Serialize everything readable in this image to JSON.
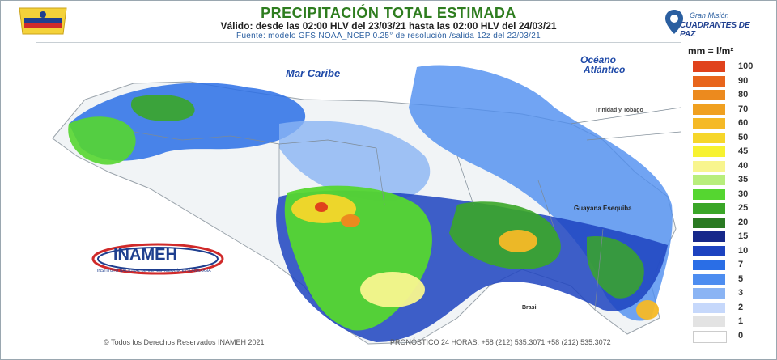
{
  "header": {
    "title": "PRECIPITACIÓN TOTAL ESTIMADA",
    "subtitle": "Válido: desde las 02:00 HLV del 23/03/21 hasta las 02:00 HLV del 24/03/21",
    "source": "Fuente: modelo GFS NOAA_NCEP 0.25° de resolución /salida 12z del 22/03/21",
    "mision_line1": "Gran Misión",
    "mision_line2": "CUADRANTES DE PAZ"
  },
  "map": {
    "sea_label": "Mar Caribe",
    "ocean_label_1": "Océano",
    "ocean_label_2": "Atlántico",
    "country_label": "Trinidad y Tobago",
    "region_label": "Guayana Esequiba",
    "neighbor_label": "Brasil"
  },
  "logo": {
    "name": "INAMEH",
    "tagline": "INSTITUTO NACIONAL DE METEOROLOGÍA E HIDROLOGÍA"
  },
  "legend": {
    "title": "mm = l/m²",
    "items": [
      {
        "label": "100",
        "color": "#e0421c"
      },
      {
        "label": "90",
        "color": "#e8651c"
      },
      {
        "label": "80",
        "color": "#ec8a1e"
      },
      {
        "label": "70",
        "color": "#f0a020"
      },
      {
        "label": "60",
        "color": "#f5b926"
      },
      {
        "label": "50",
        "color": "#f6d62a"
      },
      {
        "label": "45",
        "color": "#f7f230"
      },
      {
        "label": "40",
        "color": "#f8f58e"
      },
      {
        "label": "35",
        "color": "#b8ee7c"
      },
      {
        "label": "30",
        "color": "#55d630"
      },
      {
        "label": "25",
        "color": "#3aa628"
      },
      {
        "label": "20",
        "color": "#2a7a22"
      },
      {
        "label": "15",
        "color": "#16288a"
      },
      {
        "label": "10",
        "color": "#1d43c0"
      },
      {
        "label": "7",
        "color": "#2a6ee6"
      },
      {
        "label": "5",
        "color": "#4d8df0"
      },
      {
        "label": "3",
        "color": "#8ab4f4"
      },
      {
        "label": "2",
        "color": "#c6d8fb"
      },
      {
        "label": "1",
        "color": "#e3e3e3"
      },
      {
        "label": "0",
        "color": "#ffffff"
      }
    ]
  },
  "footer": {
    "copyright": "© Todos los Derechos Reservados INAMEH 2021",
    "contact": "PRONÓSTICO 24 HORAS: +58 (212) 535.3071  +58 (212) 535.3072"
  }
}
